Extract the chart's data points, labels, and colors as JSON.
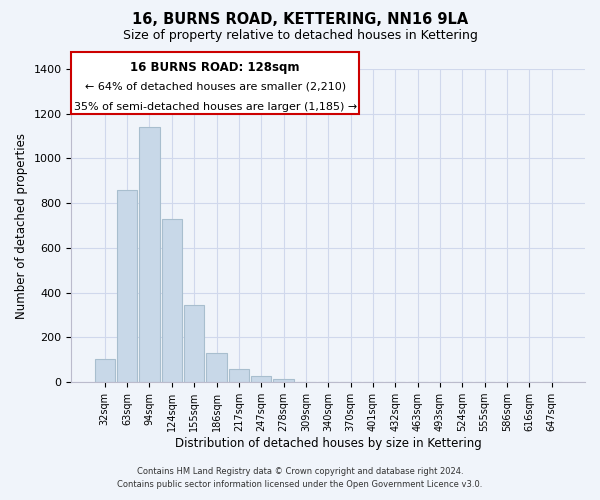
{
  "title": "16, BURNS ROAD, KETTERING, NN16 9LA",
  "subtitle": "Size of property relative to detached houses in Kettering",
  "xlabel": "Distribution of detached houses by size in Kettering",
  "ylabel": "Number of detached properties",
  "bar_color": "#c8d8e8",
  "bar_edge_color": "#a8bece",
  "categories": [
    "32sqm",
    "63sqm",
    "94sqm",
    "124sqm",
    "155sqm",
    "186sqm",
    "217sqm",
    "247sqm",
    "278sqm",
    "309sqm",
    "340sqm",
    "370sqm",
    "401sqm",
    "432sqm",
    "463sqm",
    "493sqm",
    "524sqm",
    "555sqm",
    "586sqm",
    "616sqm",
    "647sqm"
  ],
  "values": [
    105,
    860,
    1140,
    730,
    345,
    130,
    60,
    30,
    15,
    0,
    0,
    0,
    0,
    0,
    0,
    0,
    0,
    0,
    0,
    0,
    0
  ],
  "ylim": [
    0,
    1400
  ],
  "yticks": [
    0,
    200,
    400,
    600,
    800,
    1000,
    1200,
    1400
  ],
  "annotation_title": "16 BURNS ROAD: 128sqm",
  "annotation_line1": "← 64% of detached houses are smaller (2,210)",
  "annotation_line2": "35% of semi-detached houses are larger (1,185) →",
  "footer_line1": "Contains HM Land Registry data © Crown copyright and database right 2024.",
  "footer_line2": "Contains public sector information licensed under the Open Government Licence v3.0.",
  "background_color": "#f0f4fa",
  "grid_color": "#d0d8ec"
}
